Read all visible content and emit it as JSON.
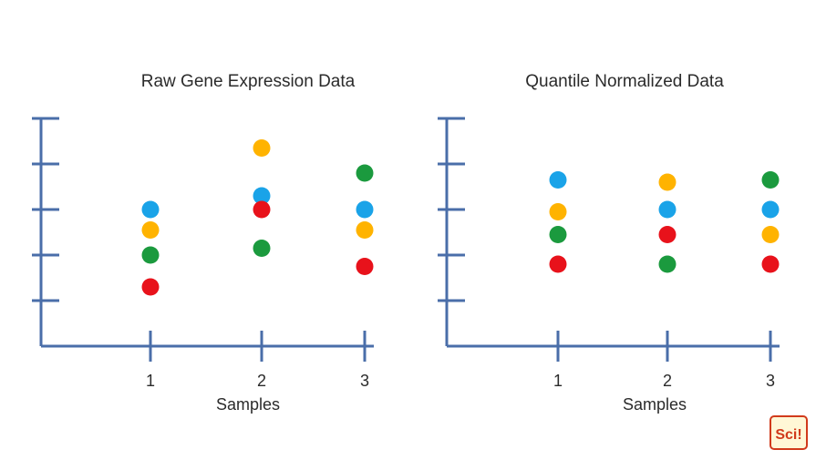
{
  "colors": {
    "axis": "#4a6ea9",
    "blue": "#1aa3e8",
    "orange": "#ffb300",
    "green": "#1b9a3e",
    "red": "#e8121b"
  },
  "chart_data": [
    {
      "type": "scatter",
      "title": "Raw Gene Expression Data",
      "xlabel": "Samples",
      "ylabel": "",
      "categories": [
        "1",
        "2",
        "3"
      ],
      "ylim": [
        0,
        5
      ],
      "y_ticks_count": 5,
      "grid": false,
      "legend": "none",
      "series": [
        {
          "color": "blue",
          "values": [
            3.0,
            3.3,
            3.0
          ]
        },
        {
          "color": "orange",
          "values": [
            2.55,
            4.35,
            2.55
          ]
        },
        {
          "color": "green",
          "values": [
            2.0,
            2.15,
            3.8
          ]
        },
        {
          "color": "red",
          "values": [
            1.3,
            3.0,
            1.75
          ]
        }
      ]
    },
    {
      "type": "scatter",
      "title": "Quantile Normalized Data",
      "xlabel": "Samples",
      "ylabel": "",
      "categories": [
        "1",
        "2",
        "3"
      ],
      "ylim": [
        0,
        5
      ],
      "y_ticks_count": 5,
      "grid": false,
      "legend": "none",
      "series": [
        {
          "color": "blue",
          "values": [
            3.65,
            3.0,
            3.0
          ]
        },
        {
          "color": "orange",
          "values": [
            2.95,
            3.6,
            2.45
          ]
        },
        {
          "color": "green",
          "values": [
            2.45,
            1.8,
            3.65
          ]
        },
        {
          "color": "red",
          "values": [
            1.8,
            2.45,
            1.8
          ]
        }
      ]
    }
  ],
  "logo": {
    "icon": "sci-logo-icon",
    "text": "Sci!"
  }
}
